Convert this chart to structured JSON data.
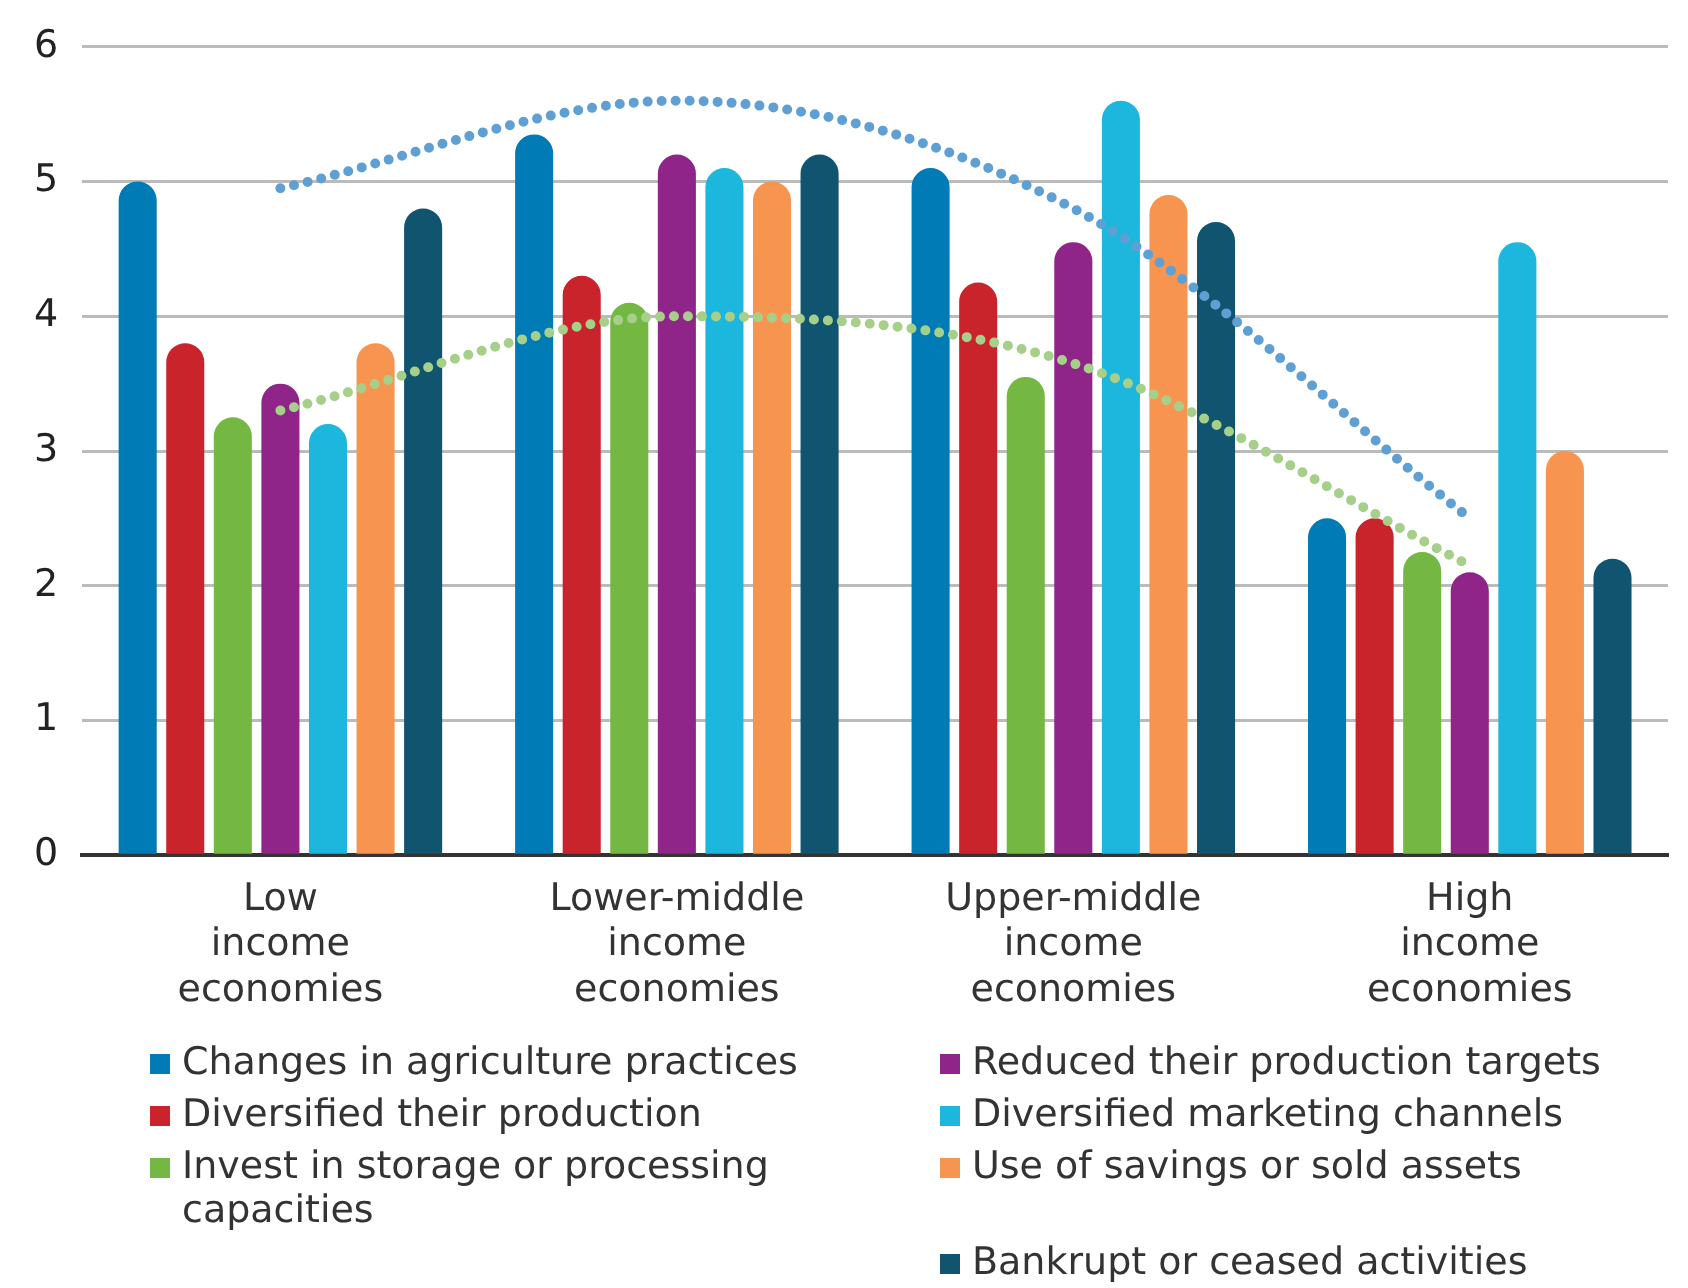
{
  "chart_data": {
    "type": "bar",
    "categories": [
      "Low income economies",
      "Lower-middle income economies",
      "Upper-middle income economies",
      "High income economies"
    ],
    "series": [
      {
        "name": "Changes in agriculture practices",
        "color": "#007bb5",
        "values": [
          5.0,
          5.35,
          5.1,
          2.5
        ]
      },
      {
        "name": "Diversified their production",
        "color": "#c9232b",
        "values": [
          3.8,
          4.3,
          4.25,
          2.5
        ]
      },
      {
        "name": "Invest in storage or processing capacities",
        "color": "#74b743",
        "values": [
          3.25,
          4.1,
          3.55,
          2.25
        ]
      },
      {
        "name": "Reduced their production targets",
        "color": "#8f2588",
        "values": [
          3.5,
          5.2,
          4.55,
          2.1
        ]
      },
      {
        "name": "Diversified marketing channels",
        "color": "#1db6dc",
        "values": [
          3.2,
          5.1,
          5.6,
          4.55
        ]
      },
      {
        "name": "Use of savings or sold assets",
        "color": "#f79550",
        "values": [
          3.8,
          5.0,
          4.9,
          3.0
        ]
      },
      {
        "name": "Bankrupt or ceased activities",
        "color": "#115470",
        "values": [
          4.8,
          5.2,
          4.7,
          2.2
        ]
      },
      {
        "type": "line",
        "color": "#5fa0d4",
        "values": [
          4.95,
          5.6,
          4.8,
          2.5
        ]
      },
      {
        "type": "line",
        "color": "#a6d08a",
        "values": [
          3.3,
          4.0,
          3.65,
          2.15
        ]
      }
    ],
    "ylim": [
      0,
      6
    ],
    "yticks": [
      0,
      1,
      2,
      3,
      4,
      5,
      6
    ],
    "grid": "y",
    "legend": "bottom",
    "line_style": "dotted",
    "marker": "none"
  }
}
